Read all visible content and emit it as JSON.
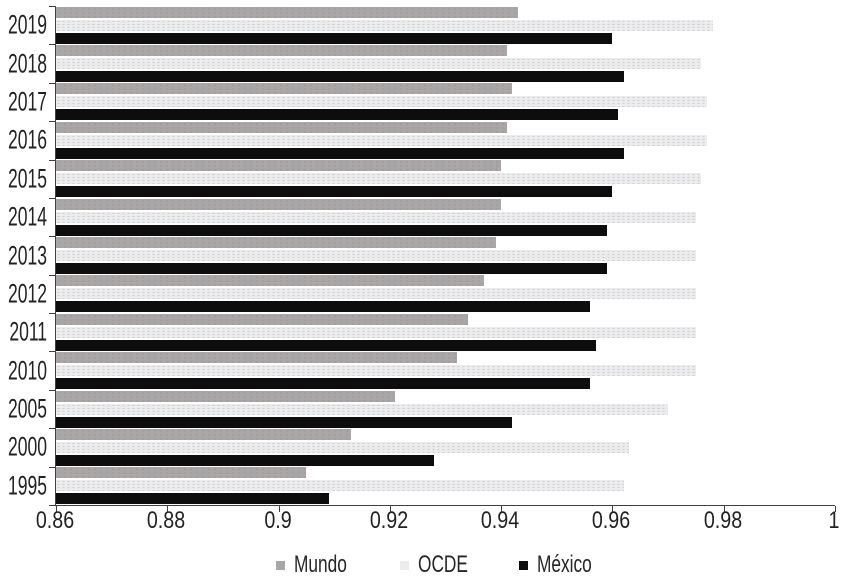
{
  "chart_data": {
    "type": "bar",
    "orientation": "horizontal",
    "title": "",
    "xlabel": "",
    "ylabel": "",
    "categories": [
      "2019",
      "2018",
      "2017",
      "2016",
      "2015",
      "2014",
      "2013",
      "2012",
      "2011",
      "2010",
      "2005",
      "2000",
      "1995"
    ],
    "series": [
      {
        "name": "Mundo",
        "color": "#a7a7a7",
        "values": [
          0.943,
          0.941,
          0.942,
          0.941,
          0.94,
          0.94,
          0.939,
          0.937,
          0.934,
          0.932,
          0.921,
          0.913,
          0.905
        ]
      },
      {
        "name": "OCDE",
        "color": "#ececec",
        "values": [
          0.978,
          0.976,
          0.977,
          0.977,
          0.976,
          0.975,
          0.975,
          0.975,
          0.975,
          0.975,
          0.97,
          0.963,
          0.962
        ]
      },
      {
        "name": "México",
        "color": "#0d0d0d",
        "values": [
          0.96,
          0.962,
          0.961,
          0.962,
          0.96,
          0.959,
          0.959,
          0.956,
          0.957,
          0.956,
          0.942,
          0.928,
          0.909
        ]
      }
    ],
    "xlim": [
      0.86,
      1.0
    ],
    "xticks": [
      0.86,
      0.88,
      0.9,
      0.92,
      0.94,
      0.96,
      0.98,
      1
    ],
    "xtick_labels": [
      "0.86",
      "0.88",
      "0.9",
      "0.92",
      "0.94",
      "0.96",
      "0.98",
      "1"
    ],
    "grid": false,
    "legend_position": "bottom",
    "background_color": "#ffffff",
    "axis_color": "#3f3f3f"
  },
  "legend": {
    "items": [
      {
        "label": "Mundo"
      },
      {
        "label": "OCDE"
      },
      {
        "label": "México"
      }
    ]
  }
}
